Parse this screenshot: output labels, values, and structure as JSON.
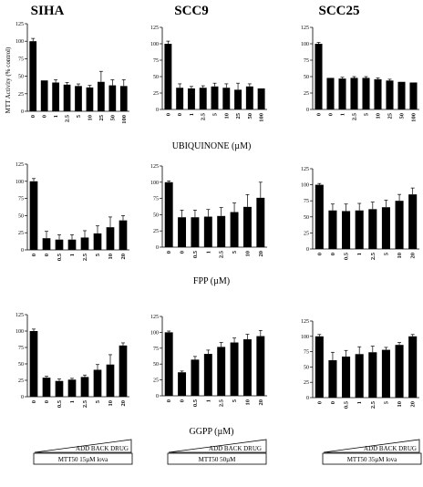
{
  "column_titles": [
    "SIHA",
    "SCC9",
    "SCC25"
  ],
  "y_axis_label": "MTT Activity (% control)",
  "x_group_labels": [
    "UBIQUINONE (µM)",
    "FPP (µM)",
    "GGPP (µM)"
  ],
  "add_back": {
    "label": "ADD BACK DRUG",
    "boxes": [
      "MTT50 15µM lova",
      "MTT50 50µM",
      "MTT50 35µM lova"
    ]
  },
  "chart_data": [
    {
      "type": "bar",
      "cell": "SIHA",
      "treatment": "UBIQUINONE",
      "categories": [
        "0",
        "0",
        "1",
        "2.5",
        "5",
        "10",
        "25",
        "50",
        "100"
      ],
      "values": [
        100,
        44,
        41,
        38,
        36,
        34,
        42,
        37,
        36
      ],
      "errors": [
        4,
        0,
        4,
        3,
        3,
        3,
        15,
        8,
        9
      ],
      "ylim": [
        0,
        125
      ]
    },
    {
      "type": "bar",
      "cell": "SCC9",
      "treatment": "UBIQUINONE",
      "categories": [
        "0",
        "0",
        "1",
        "2.5",
        "5",
        "10",
        "25",
        "50",
        "100"
      ],
      "values": [
        100,
        33,
        32,
        33,
        35,
        33,
        30,
        35,
        32
      ],
      "errors": [
        4,
        6,
        3,
        3,
        5,
        6,
        10,
        4,
        0
      ],
      "ylim": [
        0,
        125
      ]
    },
    {
      "type": "bar",
      "cell": "SCC25",
      "treatment": "UBIQUINONE",
      "categories": [
        "0",
        "0",
        "1",
        "2.5",
        "5",
        "10",
        "25",
        "50",
        "100"
      ],
      "values": [
        100,
        48,
        47,
        48,
        48,
        46,
        44,
        42,
        41
      ],
      "errors": [
        2,
        0,
        2,
        2,
        2,
        2,
        2,
        0,
        0
      ],
      "ylim": [
        0,
        125
      ]
    },
    {
      "type": "bar",
      "cell": "SIHA",
      "treatment": "FPP",
      "categories": [
        "0",
        "0",
        "0.5",
        "1",
        "2.5",
        "5",
        "10",
        "20"
      ],
      "values": [
        100,
        17,
        15,
        15,
        18,
        24,
        33,
        43
      ],
      "errors": [
        4,
        10,
        7,
        7,
        10,
        11,
        15,
        7
      ],
      "ylim": [
        0,
        125
      ]
    },
    {
      "type": "bar",
      "cell": "SCC9",
      "treatment": "FPP",
      "categories": [
        "0",
        "0",
        "0.5",
        "1",
        "2.5",
        "5",
        "10",
        "20"
      ],
      "values": [
        100,
        46,
        46,
        47,
        48,
        54,
        62,
        76
      ],
      "errors": [
        2,
        11,
        11,
        11,
        13,
        14,
        19,
        24
      ],
      "ylim": [
        0,
        125
      ]
    },
    {
      "type": "bar",
      "cell": "SCC25",
      "treatment": "FPP",
      "categories": [
        "0",
        "0",
        "0.5",
        "1",
        "2.5",
        "5",
        "10",
        "20"
      ],
      "values": [
        100,
        60,
        59,
        60,
        62,
        65,
        75,
        85
      ],
      "errors": [
        2,
        10,
        11,
        11,
        11,
        11,
        10,
        10
      ],
      "ylim": [
        0,
        125
      ]
    },
    {
      "type": "bar",
      "cell": "SIHA",
      "treatment": "GGPP",
      "categories": [
        "0",
        "0",
        "0.5",
        "1",
        "2.5",
        "5",
        "10",
        "20"
      ],
      "values": [
        100,
        29,
        24,
        26,
        30,
        41,
        49,
        78
      ],
      "errors": [
        3,
        2,
        3,
        2,
        3,
        8,
        15,
        4
      ],
      "ylim": [
        0,
        125
      ]
    },
    {
      "type": "bar",
      "cell": "SCC9",
      "treatment": "GGPP",
      "categories": [
        "0",
        "0",
        "0.5",
        "1",
        "2.5",
        "5",
        "10",
        "20"
      ],
      "values": [
        100,
        37,
        57,
        66,
        77,
        84,
        89,
        94
      ],
      "errors": [
        2,
        2,
        5,
        6,
        7,
        7,
        8,
        9
      ],
      "ylim": [
        0,
        125
      ]
    },
    {
      "type": "bar",
      "cell": "SCC25",
      "treatment": "GGPP",
      "categories": [
        "0",
        "0",
        "0.5",
        "1",
        "2.5",
        "5",
        "10",
        "20"
      ],
      "values": [
        100,
        61,
        67,
        71,
        74,
        78,
        86,
        100
      ],
      "errors": [
        3,
        13,
        10,
        12,
        10,
        4,
        4,
        3
      ],
      "ylim": [
        0,
        125
      ]
    }
  ]
}
